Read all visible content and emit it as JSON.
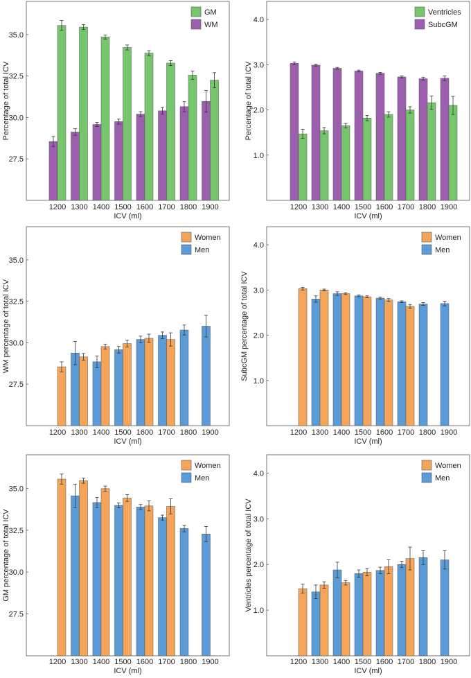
{
  "chart_data": [
    {
      "type": "bar",
      "xlabel": "ICV (ml)",
      "ylabel": "Percentage of total ICV",
      "ylim": [
        25.0,
        37.0
      ],
      "yticks": [
        "27.5",
        "30.0",
        "32.5",
        "35.0"
      ],
      "categories": [
        "1200",
        "1300",
        "1400",
        "1500",
        "1600",
        "1700",
        "1800",
        "1900"
      ],
      "series": [
        {
          "name": "GM",
          "color": "#77c66e",
          "values": [
            35.55,
            35.45,
            34.85,
            34.22,
            33.88,
            33.28,
            32.55,
            32.25
          ],
          "errors": [
            0.3,
            0.15,
            0.12,
            0.15,
            0.15,
            0.15,
            0.25,
            0.45
          ]
        },
        {
          "name": "WM",
          "color": "#9b5fae",
          "values": [
            28.55,
            29.12,
            29.58,
            29.75,
            30.2,
            30.4,
            30.65,
            30.97
          ],
          "errors": [
            0.3,
            0.2,
            0.12,
            0.15,
            0.15,
            0.2,
            0.3,
            0.65
          ]
        }
      ],
      "order": [
        "WM",
        "GM"
      ]
    },
    {
      "type": "bar",
      "xlabel": "ICV (ml)",
      "ylabel": "Percentage of total ICV",
      "ylim": [
        0.0,
        4.4
      ],
      "yticks": [
        "1.0",
        "2.0",
        "3.0",
        "4.0"
      ],
      "categories": [
        "1200",
        "1300",
        "1400",
        "1500",
        "1600",
        "1700",
        "1800",
        "1900"
      ],
      "series": [
        {
          "name": "Ventricles",
          "color": "#77c66e",
          "values": [
            1.47,
            1.54,
            1.65,
            1.82,
            1.9,
            2.0,
            2.16,
            2.1
          ],
          "errors": [
            0.1,
            0.07,
            0.05,
            0.06,
            0.06,
            0.07,
            0.15,
            0.2
          ]
        },
        {
          "name": "SubcGM",
          "color": "#9b5fae",
          "values": [
            3.03,
            2.99,
            2.92,
            2.86,
            2.81,
            2.73,
            2.69,
            2.7
          ],
          "errors": [
            0.03,
            0.02,
            0.02,
            0.02,
            0.02,
            0.02,
            0.03,
            0.05
          ]
        }
      ],
      "order": [
        "SubcGM",
        "Ventricles"
      ]
    },
    {
      "type": "bar",
      "xlabel": "ICV (ml)",
      "ylabel": "WM percentage of total ICV",
      "ylim": [
        25.0,
        37.0
      ],
      "yticks": [
        "27.5",
        "30.0",
        "32.5",
        "35.0"
      ],
      "categories": [
        "1200",
        "1300",
        "1400",
        "1500",
        "1600",
        "1700",
        "1800",
        "1900"
      ],
      "series": [
        {
          "name": "Women",
          "color": "#f5a55a",
          "values": [
            28.55,
            29.15,
            29.77,
            29.95,
            30.27,
            30.2,
            null,
            null
          ],
          "errors": [
            0.3,
            0.2,
            0.15,
            0.2,
            0.25,
            0.4,
            null,
            null
          ]
        },
        {
          "name": "Men",
          "color": "#5a9bd8",
          "values": [
            null,
            29.38,
            28.85,
            29.58,
            30.2,
            30.45,
            30.77,
            31.0
          ],
          "errors": [
            null,
            0.7,
            0.35,
            0.2,
            0.2,
            0.2,
            0.3,
            0.65
          ]
        }
      ],
      "order": [
        "Men",
        "Women"
      ]
    },
    {
      "type": "bar",
      "xlabel": "ICV (ml)",
      "ylabel": "SubcGM percentage of total ICV",
      "ylim": [
        0.0,
        4.4
      ],
      "yticks": [
        "1.0",
        "2.0",
        "3.0",
        "4.0"
      ],
      "categories": [
        "1200",
        "1300",
        "1400",
        "1500",
        "1600",
        "1700",
        "1800",
        "1900"
      ],
      "series": [
        {
          "name": "Women",
          "color": "#f5a55a",
          "values": [
            3.03,
            3.0,
            2.92,
            2.85,
            2.78,
            2.64,
            null,
            null
          ],
          "errors": [
            0.03,
            0.02,
            0.02,
            0.02,
            0.03,
            0.04,
            null,
            null
          ]
        },
        {
          "name": "Men",
          "color": "#5a9bd8",
          "values": [
            null,
            2.8,
            2.92,
            2.87,
            2.82,
            2.74,
            2.69,
            2.7
          ],
          "errors": [
            null,
            0.07,
            0.04,
            0.02,
            0.02,
            0.02,
            0.03,
            0.05
          ]
        }
      ],
      "order": [
        "Men",
        "Women"
      ]
    },
    {
      "type": "bar",
      "xlabel": "ICV (ml)",
      "ylabel": "GM percentage of total ICV",
      "ylim": [
        25.0,
        37.0
      ],
      "yticks": [
        "27.5",
        "30.0",
        "32.5",
        "35.0"
      ],
      "categories": [
        "1200",
        "1300",
        "1400",
        "1500",
        "1600",
        "1700",
        "1800",
        "1900"
      ],
      "series": [
        {
          "name": "Women",
          "color": "#f5a55a",
          "values": [
            35.55,
            35.45,
            34.98,
            34.42,
            33.95,
            33.92,
            null,
            null
          ],
          "errors": [
            0.3,
            0.15,
            0.15,
            0.2,
            0.3,
            0.45,
            null,
            null
          ]
        },
        {
          "name": "Men",
          "color": "#5a9bd8",
          "values": [
            null,
            34.55,
            34.15,
            33.98,
            33.88,
            33.25,
            32.6,
            32.27
          ],
          "errors": [
            null,
            0.7,
            0.3,
            0.15,
            0.15,
            0.15,
            0.2,
            0.45
          ]
        }
      ],
      "order": [
        "Men",
        "Women"
      ]
    },
    {
      "type": "bar",
      "xlabel": "ICV (ml)",
      "ylabel": "Ventricles percentage of total ICV",
      "ylim": [
        0.0,
        4.4
      ],
      "yticks": [
        "1.0",
        "2.0",
        "3.0",
        "4.0"
      ],
      "categories": [
        "1200",
        "1300",
        "1400",
        "1500",
        "1600",
        "1700",
        "1800",
        "1900"
      ],
      "series": [
        {
          "name": "Women",
          "color": "#f5a55a",
          "values": [
            1.47,
            1.55,
            1.6,
            1.83,
            1.95,
            2.13,
            null,
            null
          ],
          "errors": [
            0.1,
            0.07,
            0.05,
            0.08,
            0.15,
            0.25,
            null,
            null
          ]
        },
        {
          "name": "Men",
          "color": "#5a9bd8",
          "values": [
            null,
            1.4,
            1.88,
            1.8,
            1.87,
            2.0,
            2.15,
            2.1
          ],
          "errors": [
            null,
            0.15,
            0.17,
            0.08,
            0.07,
            0.07,
            0.15,
            0.2
          ]
        }
      ],
      "order": [
        "Men",
        "Women"
      ]
    }
  ]
}
